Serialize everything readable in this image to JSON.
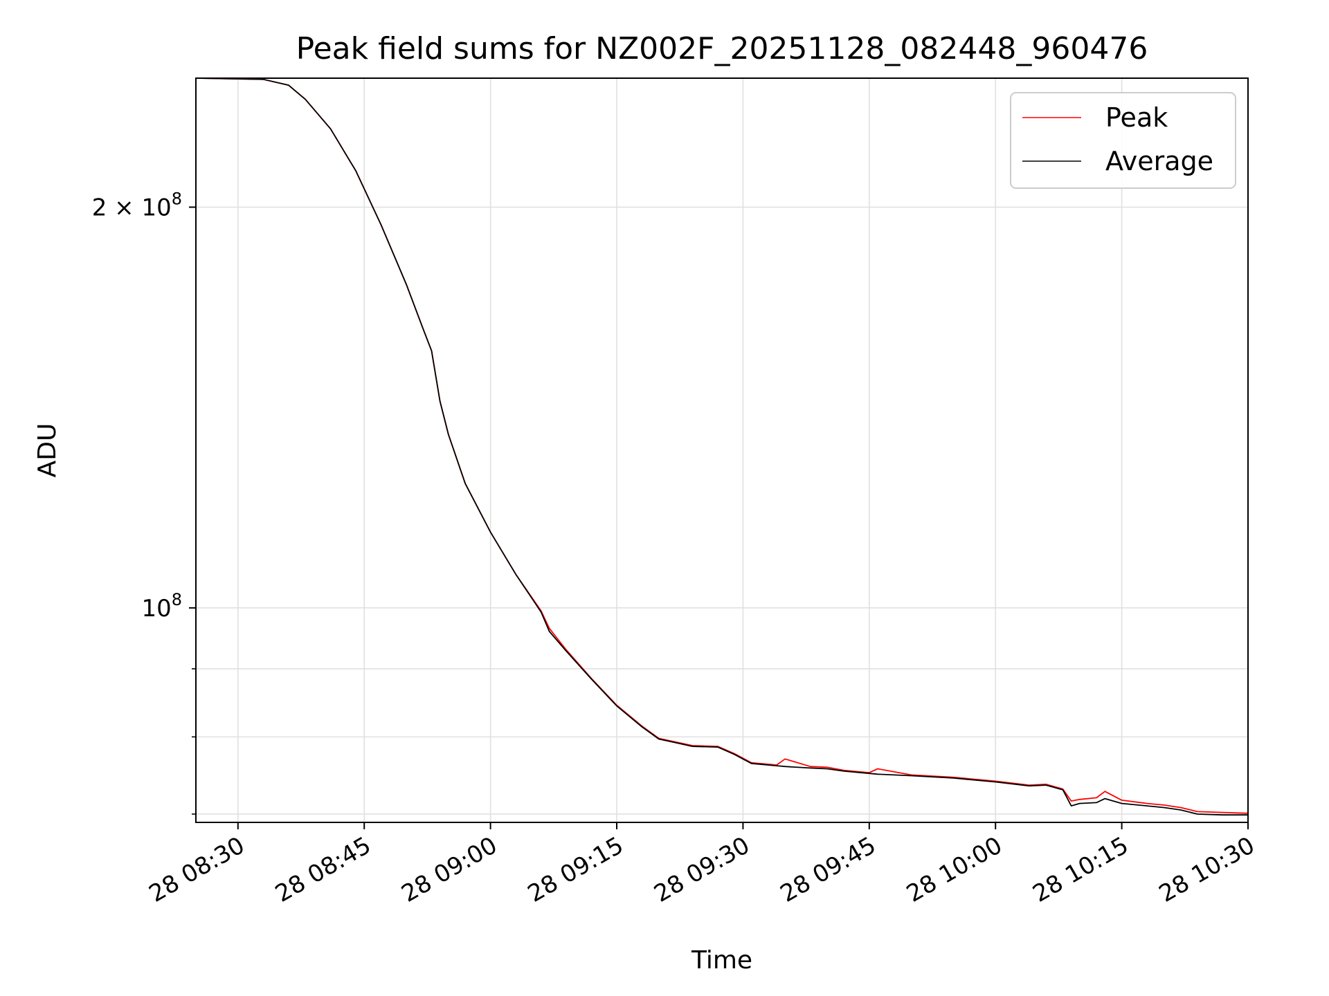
{
  "chart_data": {
    "type": "line",
    "title": "Peak field sums for NZ002F_20251128_082448_960476",
    "xlabel": "Time",
    "ylabel": "ADU",
    "y_scale": "log",
    "grid": true,
    "legend_position": "top-right",
    "xlim": [
      "2025-11-28 08:25",
      "2025-11-28 10:30"
    ],
    "ylim": [
      69000000,
      250000000
    ],
    "x_ticks": [
      {
        "value": "2025-11-28 08:30",
        "label": "28 08:30"
      },
      {
        "value": "2025-11-28 08:45",
        "label": "28 08:45"
      },
      {
        "value": "2025-11-28 09:00",
        "label": "28 09:00"
      },
      {
        "value": "2025-11-28 09:15",
        "label": "28 09:15"
      },
      {
        "value": "2025-11-28 09:30",
        "label": "28 09:30"
      },
      {
        "value": "2025-11-28 09:45",
        "label": "28 09:45"
      },
      {
        "value": "2025-11-28 10:00",
        "label": "28 10:00"
      },
      {
        "value": "2025-11-28 10:15",
        "label": "28 10:15"
      },
      {
        "value": "2025-11-28 10:30",
        "label": "28 10:30"
      }
    ],
    "y_major_ticks": [
      {
        "value": 100000000,
        "base": "10",
        "exp": "8",
        "prefix": ""
      },
      {
        "value": 200000000,
        "base": "10",
        "exp": "8",
        "prefix": "2 × "
      }
    ],
    "y_minor_ticks": [
      70000000,
      80000000,
      90000000
    ],
    "series": [
      {
        "name": "Peak",
        "color": "#ff0000",
        "x": [
          "2025-11-28 08:25",
          "2025-11-28 08:33",
          "2025-11-28 08:36",
          "2025-11-28 08:38",
          "2025-11-28 08:41",
          "2025-11-28 08:44",
          "2025-11-28 08:47",
          "2025-11-28 08:50",
          "2025-11-28 08:52",
          "2025-11-28 08:53",
          "2025-11-28 08:54",
          "2025-11-28 08:55",
          "2025-11-28 08:57",
          "2025-11-28 09:00",
          "2025-11-28 09:03",
          "2025-11-28 09:06",
          "2025-11-28 09:07",
          "2025-11-28 09:09",
          "2025-11-28 09:12",
          "2025-11-28 09:15",
          "2025-11-28 09:18",
          "2025-11-28 09:20",
          "2025-11-28 09:22",
          "2025-11-28 09:24",
          "2025-11-28 09:27",
          "2025-11-28 09:29",
          "2025-11-28 09:31",
          "2025-11-28 09:34",
          "2025-11-28 09:35",
          "2025-11-28 09:38",
          "2025-11-28 09:40",
          "2025-11-28 09:42",
          "2025-11-28 09:45",
          "2025-11-28 09:46",
          "2025-11-28 09:50",
          "2025-11-28 09:55",
          "2025-11-28 10:00",
          "2025-11-28 10:04",
          "2025-11-28 10:06",
          "2025-11-28 10:08",
          "2025-11-28 10:09",
          "2025-11-28 10:10",
          "2025-11-28 10:12",
          "2025-11-28 10:13",
          "2025-11-28 10:15",
          "2025-11-28 10:18",
          "2025-11-28 10:20",
          "2025-11-28 10:22",
          "2025-11-28 10:24",
          "2025-11-28 10:27",
          "2025-11-28 10:30"
        ],
        "y": [
          250000000,
          249500000,
          247000000,
          241000000,
          229000000,
          213000000,
          194000000,
          175000000,
          162000000,
          156000000,
          143000000,
          135000000,
          124000000,
          114000000,
          106000000,
          99500000,
          96500000,
          93000000,
          88500000,
          84500000,
          81500000,
          79800000,
          79300000,
          78800000,
          78700000,
          77700000,
          76500000,
          76200000,
          77000000,
          76000000,
          75900000,
          75500000,
          75200000,
          75700000,
          74900000,
          74600000,
          74100000,
          73600000,
          73700000,
          73100000,
          71600000,
          71800000,
          72000000,
          72800000,
          71700000,
          71300000,
          71100000,
          70800000,
          70300000,
          70200000,
          70100000
        ]
      },
      {
        "name": "Average",
        "color": "#000000",
        "x": [
          "2025-11-28 08:25",
          "2025-11-28 08:33",
          "2025-11-28 08:36",
          "2025-11-28 08:38",
          "2025-11-28 08:41",
          "2025-11-28 08:44",
          "2025-11-28 08:47",
          "2025-11-28 08:50",
          "2025-11-28 08:52",
          "2025-11-28 08:53",
          "2025-11-28 08:54",
          "2025-11-28 08:55",
          "2025-11-28 08:57",
          "2025-11-28 09:00",
          "2025-11-28 09:03",
          "2025-11-28 09:06",
          "2025-11-28 09:07",
          "2025-11-28 09:09",
          "2025-11-28 09:12",
          "2025-11-28 09:15",
          "2025-11-28 09:18",
          "2025-11-28 09:20",
          "2025-11-28 09:22",
          "2025-11-28 09:24",
          "2025-11-28 09:27",
          "2025-11-28 09:29",
          "2025-11-28 09:31",
          "2025-11-28 09:34",
          "2025-11-28 09:35",
          "2025-11-28 09:38",
          "2025-11-28 09:40",
          "2025-11-28 09:42",
          "2025-11-28 09:45",
          "2025-11-28 09:46",
          "2025-11-28 09:50",
          "2025-11-28 09:55",
          "2025-11-28 10:00",
          "2025-11-28 10:04",
          "2025-11-28 10:06",
          "2025-11-28 10:08",
          "2025-11-28 10:09",
          "2025-11-28 10:10",
          "2025-11-28 10:12",
          "2025-11-28 10:13",
          "2025-11-28 10:15",
          "2025-11-28 10:18",
          "2025-11-28 10:20",
          "2025-11-28 10:22",
          "2025-11-28 10:24",
          "2025-11-28 10:27",
          "2025-11-28 10:30"
        ],
        "y": [
          250000000,
          249500000,
          247000000,
          241000000,
          229000000,
          213000000,
          194000000,
          175000000,
          162000000,
          156000000,
          143000000,
          135000000,
          124000000,
          114000000,
          106000000,
          99300000,
          96000000,
          92800000,
          88400000,
          84400000,
          81400000,
          79700000,
          79200000,
          78700000,
          78600000,
          77600000,
          76400000,
          76100000,
          76000000,
          75800000,
          75700000,
          75400000,
          75100000,
          75000000,
          74800000,
          74500000,
          74000000,
          73500000,
          73600000,
          73000000,
          71000000,
          71300000,
          71400000,
          71900000,
          71300000,
          71000000,
          70800000,
          70500000,
          70000000,
          69900000,
          69900000
        ]
      }
    ]
  }
}
